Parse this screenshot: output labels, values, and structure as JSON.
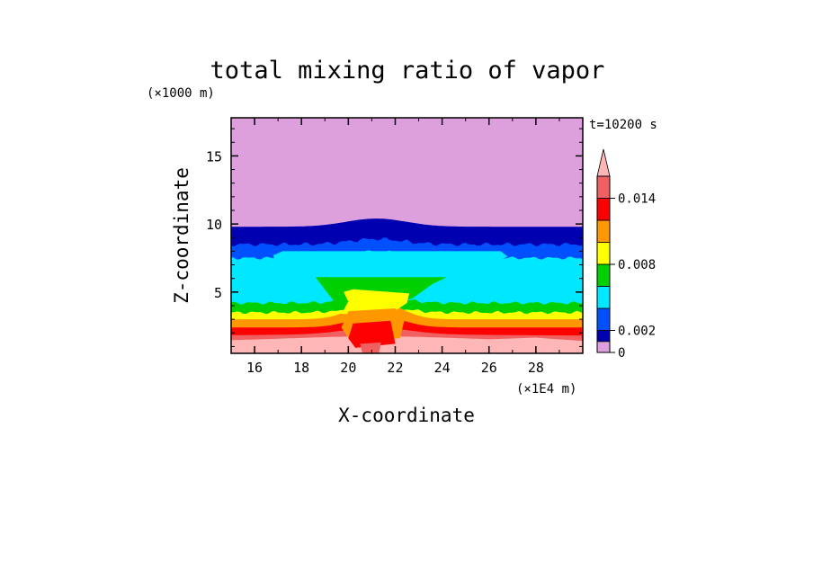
{
  "chart_data": {
    "type": "heatmap",
    "title": "total mixing ratio of vapor",
    "xlabel": "X-coordinate",
    "ylabel": "Z-coordinate",
    "x_unit": "(×1E4 m)",
    "y_unit": "(×1000 m)",
    "time_label": "t=10200 s",
    "xlim": [
      15,
      30
    ],
    "ylim": [
      0.5,
      17.8
    ],
    "x_ticks": [
      "16",
      "18",
      "20",
      "22",
      "24",
      "26",
      "28"
    ],
    "x_tick_values": [
      16,
      18,
      20,
      22,
      24,
      26,
      28
    ],
    "y_ticks": [
      "5",
      "10",
      "15"
    ],
    "y_tick_values": [
      5,
      10,
      15
    ],
    "grid": false,
    "colorbar": {
      "tick_labels": [
        "0.014",
        "0.008",
        "0.002",
        "0"
      ],
      "tick_values": [
        0.014,
        0.008,
        0.002,
        0
      ],
      "levels": [
        0,
        0.001,
        0.002,
        0.004,
        0.006,
        0.008,
        0.01,
        0.012,
        0.014,
        0.016
      ],
      "colors": [
        "#dda0dd",
        "#0000b0",
        "#0050ff",
        "#00e8ff",
        "#00d000",
        "#ffff00",
        "#ff9800",
        "#ff0000",
        "#f06060",
        "#ffb6b6"
      ]
    },
    "bands": [
      {
        "level": "0.016+",
        "color": "#ffb6b6",
        "z_top": 1.5
      },
      {
        "level": "0.014-0.016",
        "color": "#f06060",
        "z_top": 1.8
      },
      {
        "level": "0.012-0.014",
        "color": "#ff0000",
        "z_top": 2.4
      },
      {
        "level": "0.010-0.012",
        "color": "#ff9800",
        "z_top": 3.0
      },
      {
        "level": "0.008-0.010",
        "color": "#ffff00",
        "z_top": 3.5
      },
      {
        "level": "0.006-0.008",
        "color": "#00d000",
        "z_top": 4.2
      },
      {
        "level": "0.004-0.006",
        "color": "#00e8ff",
        "z_top": 7.5
      },
      {
        "level": "0.002-0.004",
        "color": "#0050ff",
        "z_top": 8.5
      },
      {
        "level": "0.001-0.002",
        "color": "#0000b0",
        "z_top": 9.8
      },
      {
        "level": "0-0.001",
        "color": "#dda0dd",
        "z_top": 17.8
      }
    ]
  }
}
